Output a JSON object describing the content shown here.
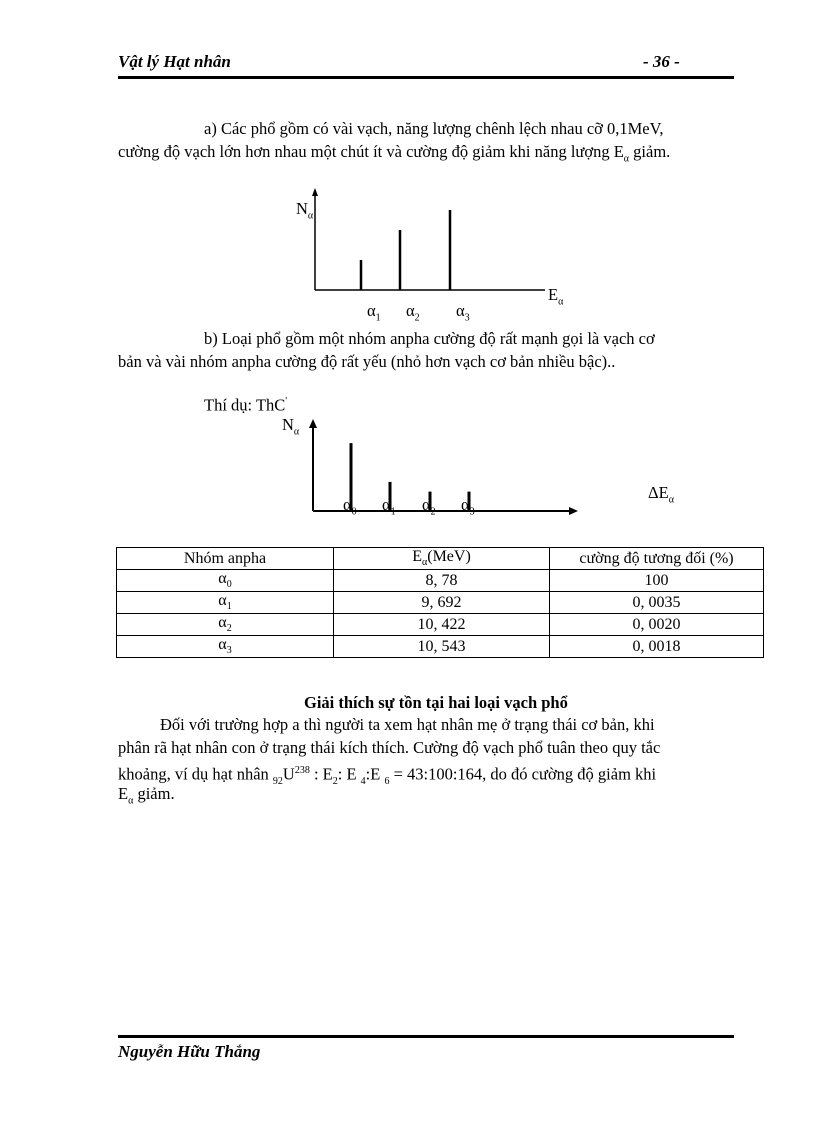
{
  "header": {
    "title": "Vật lý Hạt nhân",
    "page": "- 36 -"
  },
  "para_a": {
    "line1": "a) Các  phổ gồm có vài vạch, năng lượng chênh lệch nhau cỡ 0,1MeV,",
    "line2_pre": "cường độ vạch lớn hơn nhau một chút ít và cường độ giảm khi năng lượng E",
    "line2_sub": "α",
    "line2_post": " giảm."
  },
  "chart_a": {
    "type": "bar",
    "ylabel": "N",
    "ylabel_sub": "α",
    "xlabel": "E",
    "xlabel_sub": "α",
    "categories": [
      "α1",
      "α2",
      "α3"
    ],
    "cat_base": "α",
    "cat_subs": [
      "1",
      "2",
      "3"
    ],
    "values": [
      30,
      60,
      80
    ]
  },
  "para_b": {
    "line1": "b) Loại phổ gồm một nhóm anpha cường độ rất mạnh gọi là vạch cơ",
    "line2": "bản và vài nhóm anpha cường độ rất yếu (nhỏ hơn vạch cơ bản nhiều bậc).."
  },
  "example": {
    "label": "Thí dụ: ThC",
    "sup": "'"
  },
  "chart_b": {
    "type": "bar",
    "ylabel": "N",
    "ylabel_sub": "α",
    "xlabel": "ΔE",
    "xlabel_sub": "α",
    "cat_base": "α",
    "cat_subs": [
      "0",
      "1",
      "2",
      "3"
    ],
    "values": [
      70,
      30,
      20,
      20
    ]
  },
  "table": {
    "headers": [
      "Nhóm anpha",
      "Eα(MeV)",
      "cường độ tương đối (%)"
    ],
    "header_e": "E",
    "header_e_sub": "α",
    "header_e_post": "(MeV)",
    "rows": [
      {
        "sym": "α",
        "sub": "0",
        "e": "8, 78",
        "i": "100"
      },
      {
        "sym": "α",
        "sub": "1",
        "e": "9, 692",
        "i": "0, 0035"
      },
      {
        "sym": "α",
        "sub": "2",
        "e": "10, 422",
        "i": "0, 0020"
      },
      {
        "sym": "α",
        "sub": "3",
        "e": "10, 543",
        "i": "0, 0018"
      }
    ]
  },
  "section": {
    "title": "Giải thích sự tồn tại hai loại vạch phổ",
    "line1": "Đối với trường hợp a thì người ta xem hạt nhân mẹ ở trạng thái cơ bản, khi",
    "line2": "phân rã hạt nhân con ở trạng thái kích thích. Cường độ vạch phổ tuân theo quy tắc",
    "line3_pre": "khoảng, ví dụ hạt nhân ",
    "line3_z": "92",
    "line3_u": "U",
    "line3_a": "238",
    "line3_post": " :  E",
    "line3_s1": "2",
    "line3_m1": ": E ",
    "line3_s2": "4",
    "line3_m2": ":E ",
    "line3_s3": "6",
    "line3_end": " = 43:100:164, do đó cường độ giảm khi",
    "line4_pre": "E",
    "line4_sub": "α",
    "line4_post": " giảm."
  },
  "footer": {
    "author": "Nguyễn Hữu Thắng"
  }
}
